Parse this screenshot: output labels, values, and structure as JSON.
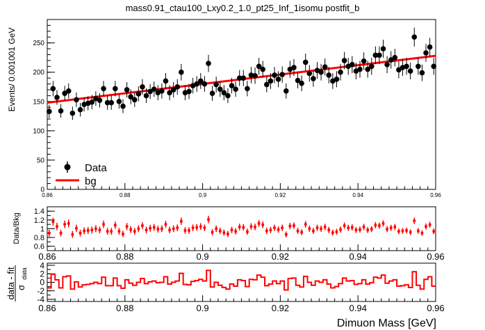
{
  "title": "mass0.91_ctau100_Lxy0.2_1.0_pt25_Inf_1isomu   postfit_b",
  "chart_data": [
    {
      "type": "scatter",
      "panel": "main",
      "ylabel": "Events/ 0.001001 GeV",
      "xlim": [
        0.86,
        0.96
      ],
      "ylim": [
        0,
        290
      ],
      "x_ticks": [
        "0.86",
        "0.88",
        "0.9",
        "0.92",
        "0.94",
        "0.96"
      ],
      "y_ticks": [
        0,
        50,
        100,
        150,
        200,
        250
      ],
      "legend": {
        "placement": "bottom-left",
        "entries": [
          "Data",
          "bg"
        ]
      },
      "series": [
        {
          "name": "Data",
          "kind": "points-with-errors",
          "color": "#000000",
          "x": [
            0.8605,
            0.8615,
            0.8625,
            0.8635,
            0.8645,
            0.8655,
            0.8665,
            0.8675,
            0.8685,
            0.8695,
            0.8705,
            0.8715,
            0.8725,
            0.8735,
            0.8745,
            0.8755,
            0.8765,
            0.8775,
            0.8785,
            0.8795,
            0.8805,
            0.8815,
            0.8825,
            0.8835,
            0.8845,
            0.8855,
            0.8865,
            0.8875,
            0.8885,
            0.8895,
            0.8905,
            0.8915,
            0.8925,
            0.8935,
            0.8945,
            0.8955,
            0.8965,
            0.8975,
            0.8985,
            0.8995,
            0.9005,
            0.9015,
            0.9025,
            0.9035,
            0.9045,
            0.9055,
            0.9065,
            0.9075,
            0.9085,
            0.9095,
            0.9105,
            0.9115,
            0.9125,
            0.9135,
            0.9145,
            0.9155,
            0.9165,
            0.9175,
            0.9185,
            0.9195,
            0.9205,
            0.9215,
            0.9225,
            0.9235,
            0.9245,
            0.9255,
            0.9265,
            0.9275,
            0.9285,
            0.9295,
            0.9305,
            0.9315,
            0.9325,
            0.9335,
            0.9345,
            0.9355,
            0.9365,
            0.9375,
            0.9385,
            0.9395,
            0.9405,
            0.9415,
            0.9425,
            0.9435,
            0.9445,
            0.9455,
            0.9465,
            0.9475,
            0.9485,
            0.9495,
            0.9505,
            0.9515,
            0.9525,
            0.9535,
            0.9545,
            0.9555,
            0.9565,
            0.9575,
            0.9585,
            0.9595
          ],
          "y": [
            133,
            172,
            157,
            134,
            164,
            168,
            130,
            153,
            136,
            145,
            147,
            149,
            155,
            152,
            172,
            148,
            148,
            172,
            150,
            142,
            170,
            158,
            153,
            163,
            175,
            160,
            167,
            171,
            165,
            168,
            185,
            165,
            170,
            175,
            200,
            165,
            167,
            177,
            180,
            185,
            180,
            215,
            164,
            179,
            171,
            165,
            160,
            177,
            171,
            190,
            190,
            172,
            195,
            194,
            210,
            205,
            179,
            185,
            195,
            188,
            196,
            168,
            205,
            208,
            186,
            181,
            217,
            198,
            189,
            203,
            200,
            209,
            195,
            185,
            188,
            200,
            220,
            210,
            213,
            202,
            205,
            219,
            205,
            210,
            229,
            229,
            240,
            213,
            221,
            225,
            204,
            208,
            210,
            202,
            260,
            210,
            199,
            233,
            243,
            210
          ]
        },
        {
          "name": "bg",
          "kind": "line",
          "color": "#ff0000",
          "x": [
            0.86,
            0.96
          ],
          "y": [
            148,
            228
          ]
        }
      ]
    },
    {
      "type": "scatter",
      "panel": "ratio",
      "ylabel": "Data/Bkg",
      "xlim": [
        0.86,
        0.96
      ],
      "ylim": [
        0.5,
        1.5
      ],
      "x_ticks": [
        "0.86",
        "0.88",
        "0.9",
        "0.92",
        "0.94",
        "0.96"
      ],
      "y_ticks": [
        "0.6",
        "0.8",
        "1",
        "1.2",
        "1.4"
      ],
      "color": "#ff0000",
      "y": [
        0.9,
        1.16,
        1.05,
        0.9,
        1.1,
        1.12,
        0.87,
        1.01,
        0.9,
        0.95,
        0.96,
        0.97,
        1.0,
        0.97,
        1.1,
        0.94,
        0.94,
        1.08,
        0.94,
        0.88,
        1.05,
        0.98,
        0.94,
        1.0,
        1.07,
        0.97,
        1.01,
        1.03,
        0.99,
        1.0,
        1.1,
        0.97,
        1.0,
        1.02,
        1.17,
        0.96,
        0.96,
        1.02,
        1.03,
        1.05,
        1.02,
        1.21,
        0.92,
        1.0,
        0.95,
        0.91,
        0.88,
        0.97,
        0.94,
        1.04,
        1.03,
        0.93,
        1.05,
        1.04,
        1.12,
        1.09,
        0.95,
        0.97,
        1.02,
        0.98,
        1.02,
        0.87,
        1.06,
        1.07,
        0.95,
        0.92,
        1.1,
        1.0,
        0.95,
        1.02,
        1.0,
        1.04,
        0.97,
        0.91,
        0.93,
        0.98,
        1.07,
        1.02,
        1.03,
        0.97,
        0.98,
        1.04,
        0.97,
        0.99,
        1.08,
        1.07,
        1.12,
        0.99,
        1.02,
        1.04,
        0.94,
        0.95,
        0.96,
        0.92,
        1.18,
        0.95,
        0.9,
        1.05,
        1.09,
        0.94
      ]
    },
    {
      "type": "line",
      "panel": "pull",
      "ylabel": "data - fit / σ_data",
      "xlabel": "Dimuon Mass [GeV]",
      "xlim": [
        0.86,
        0.96
      ],
      "ylim": [
        -4.5,
        4.5
      ],
      "x_ticks": [
        "0.86",
        "0.88",
        "0.9",
        "0.92",
        "0.94",
        "0.96"
      ],
      "y_ticks": [
        "-4",
        "-2",
        "0",
        "2",
        "4"
      ],
      "color": "#ff0000",
      "style": "step",
      "y": [
        -1.3,
        1.9,
        0.6,
        -1.3,
        1.3,
        1.5,
        -1.6,
        0.1,
        -1.1,
        -0.6,
        -0.5,
        -0.3,
        0,
        -0.3,
        1.2,
        -0.8,
        -0.8,
        1.0,
        -0.8,
        -1.4,
        0.6,
        -0.2,
        -0.7,
        0,
        0.9,
        -0.3,
        0.1,
        0.3,
        -0.1,
        0,
        1.3,
        -0.4,
        0,
        0.3,
        2.1,
        -0.5,
        -0.6,
        0.2,
        0.4,
        0.7,
        0.3,
        2.8,
        -1.1,
        0,
        -0.7,
        -1.2,
        -1.6,
        -0.4,
        -0.9,
        0.6,
        0.4,
        -1.0,
        0.7,
        0.6,
        1.7,
        1.2,
        -0.8,
        -0.4,
        0.3,
        -0.3,
        0.3,
        -1.8,
        0.9,
        1.0,
        -0.7,
        -1.1,
        1.4,
        0,
        -0.7,
        0.3,
        0,
        0.6,
        -0.4,
        -1.3,
        -1.0,
        -0.3,
        1.0,
        0.3,
        0.4,
        -0.5,
        -0.3,
        0.6,
        -0.4,
        -0.1,
        1.2,
        1.0,
        1.7,
        -0.2,
        0.3,
        0.6,
        -0.9,
        -0.8,
        -0.6,
        -1.2,
        2.5,
        -0.7,
        -1.6,
        0.7,
        1.3,
        -0.9
      ]
    }
  ]
}
